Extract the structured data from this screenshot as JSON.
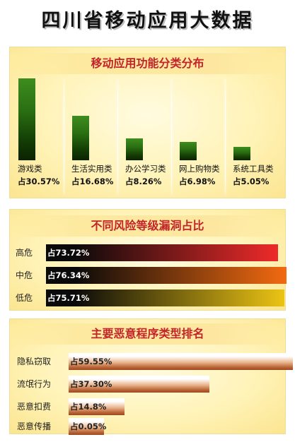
{
  "title": "四川省移动应用大数据",
  "chart_data": [
    {
      "type": "bar",
      "title": "移动应用功能分类分布",
      "unit": "%",
      "value_prefix": "占",
      "categories": [
        "游戏类",
        "生活实用类",
        "办公学习类",
        "网上购物类",
        "系统工具类"
      ],
      "values": [
        30.57,
        16.68,
        8.26,
        6.98,
        5.05
      ],
      "value_labels": [
        "占30.57%",
        "占16.68%",
        "占8.26%",
        "占6.98%",
        "占5.05%"
      ],
      "ylim": [
        0,
        30.57
      ],
      "orientation": "vertical",
      "grid": false,
      "bar_color": "#2f7a17"
    },
    {
      "type": "bar",
      "title": "不同风险等级漏洞占比",
      "orientation": "horizontal",
      "categories": [
        "高危",
        "中危",
        "低危"
      ],
      "values": [
        73.72,
        76.34,
        75.71
      ],
      "value_labels": [
        "占73.72%",
        "占76.34%",
        "占75.71%"
      ],
      "xlim": [
        0,
        76.34
      ],
      "grid": false,
      "bar_gradients": [
        [
          "#0a0a0a",
          "#ee2a2a"
        ],
        [
          "#0a0a0a",
          "#f26a10"
        ],
        [
          "#0a0a0a",
          "#ecc414"
        ]
      ]
    },
    {
      "type": "bar",
      "title": "主要恶意程序类型排名",
      "orientation": "horizontal",
      "categories": [
        "隐私窃取",
        "流氓行为",
        "恶意扣费",
        "恶意传播"
      ],
      "values": [
        59.55,
        37.3,
        14.8,
        0.05
      ],
      "value_labels": [
        "占59.55%",
        "占37.30%",
        "占14.8%",
        "占0.05%"
      ],
      "xlim": [
        0,
        59.55
      ],
      "grid": false,
      "bar_color": "#b96234"
    }
  ]
}
